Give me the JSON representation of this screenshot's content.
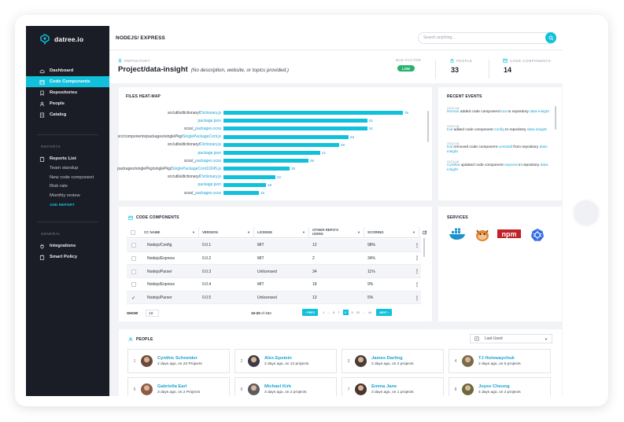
{
  "brand": {
    "name": "datree.io"
  },
  "sidebar": {
    "main_items": [
      {
        "label": "Dashboard",
        "icon": "cloud-icon"
      },
      {
        "label": "Code Components",
        "icon": "box-icon"
      },
      {
        "label": "Repositories",
        "icon": "bookmark-icon"
      },
      {
        "label": "People",
        "icon": "person-icon"
      },
      {
        "label": "Catalog",
        "icon": "book-icon"
      }
    ],
    "reports_heading": "REPORTS",
    "reports_list": "Reports List",
    "reports": [
      "Team standup",
      "New code component",
      "Risk rate",
      "Monthly review"
    ],
    "add_report": "ADD REPORT",
    "general_heading": "GENERAL",
    "general_items": [
      {
        "label": "Integrations",
        "icon": "plug-icon"
      },
      {
        "label": "Smart Policy",
        "icon": "clipboard-icon"
      }
    ]
  },
  "header": {
    "breadcrumb": "NODEJS/ EXPRESS",
    "search_placeholder": "Search anything..."
  },
  "repo": {
    "label": "REPOSITORY",
    "title": "Project/data-insight",
    "description": "(No description, website, or topics provided.)",
    "bus_factor_label": "BUS FACTOR",
    "bus_factor_value": "LOW",
    "people_label": "PEOPLE",
    "people_value": "33",
    "cc_label": "CODE COMPONENTS",
    "cc_value": "14"
  },
  "heatmap": {
    "title": "FILES HEAT-MAP",
    "xlim": [
      0,
      80
    ],
    "rows": [
      {
        "path": "src/utils/dictionary/",
        "file": "Dictionary.js",
        "value": 76
      },
      {
        "path": "",
        "file": "package.json",
        "value": 61
      },
      {
        "path": "scss/_",
        "file": "packages.scss",
        "value": 61
      },
      {
        "path": "src/components/packages/singlePkg/",
        "file": "SinglePackageCont.js",
        "value": 53
      },
      {
        "path": "src/utils/dictionary/",
        "file": "Dictionary.js",
        "value": 49
      },
      {
        "path": "",
        "file": "package.json",
        "value": 41
      },
      {
        "path": "scss/_",
        "file": "packages.scss",
        "value": 36
      },
      {
        "path": "packages/singlePkg/singlePkg/",
        "file": "SinglePackageCont10245.js",
        "value": 28
      },
      {
        "path": "src/utils/dictionary/",
        "file": "Dictionary.js",
        "value": 22
      },
      {
        "path": "",
        "file": "package.json",
        "value": 18
      },
      {
        "path": "scss/_",
        "file": "packages.scss",
        "value": 15
      }
    ]
  },
  "events": {
    "title": "RECENT EVENTS",
    "items": [
      {
        "date": "23/11/18",
        "user": "Roman",
        "action": " added code component ",
        "target": "koa",
        "mid": " to repository ",
        "repo": "data-insight"
      },
      {
        "date": "23/11/18",
        "user": "Kat",
        "action": " added code component ",
        "target": "config",
        "mid": " to repository ",
        "repo": "data-insight"
      },
      {
        "date": "23/11/18",
        "user": "Kat",
        "action": " removed code component ",
        "target": "uninstall",
        "mid": " from repository ",
        "repo": "data-insight"
      },
      {
        "date": "23/11/18",
        "user": "Cynthia",
        "action": " updated code component ",
        "target": "express",
        "mid": " in repository ",
        "repo": "data-insight"
      }
    ]
  },
  "code_components": {
    "title": "CODE COMPONENTS",
    "columns": [
      "CC NAME",
      "VERSION",
      "LICENSE",
      "OTHER REPO'S USING",
      "SCORING"
    ],
    "rows": [
      {
        "name": "Nodejs/Config",
        "version": "0.0.1",
        "license": "MIT",
        "using": "12",
        "scoring": "98%",
        "checked": false
      },
      {
        "name": "Nodejs/Express",
        "version": "0.0.2",
        "license": "MIT",
        "using": "2",
        "scoring": "34%",
        "checked": false
      },
      {
        "name": "Nodejs/Parser",
        "version": "0.0.3",
        "license": "Unlicensed",
        "using": "34",
        "scoring": "11%",
        "checked": false
      },
      {
        "name": "Nodejs/Express",
        "version": "0.0.4",
        "license": "MIT",
        "using": "18",
        "scoring": "9%",
        "checked": false
      },
      {
        "name": "Nodejs/Parser",
        "version": "0.0.5",
        "license": "Unlicensed",
        "using": "13",
        "scoring": "5%",
        "checked": true
      }
    ],
    "show_label": "SHOW",
    "show_value": "10",
    "range_text": "10-20",
    "range_of": "of 484",
    "prev": "PREV",
    "next": "NEXT",
    "pages": [
      "1",
      "...",
      "6",
      "7",
      "8",
      "9",
      "10",
      "...",
      "44"
    ],
    "current_page": "8"
  },
  "services": {
    "title": "SERVICES",
    "items": [
      "docker-icon",
      "grunt-icon",
      "npm-icon",
      "kubernetes-icon"
    ],
    "npm_text": "npm"
  },
  "people": {
    "title": "PEOPLE",
    "sort_value": "Last Used",
    "items": [
      {
        "num": "1",
        "name": "Cynthis Schneider",
        "info": "2 days ago, on 22 Projects",
        "color": "#6b4a3a"
      },
      {
        "num": "2",
        "name": "Alex Epstein",
        "info": "2 days ago, on 12 projects",
        "color": "#3c3a44"
      },
      {
        "num": "3",
        "name": "James Darling",
        "info": "2 days ago, on 2 projects",
        "color": "#4a3b34"
      },
      {
        "num": "4",
        "name": "TJ Holowaychuk",
        "info": "2 days ago, on 5 projects",
        "color": "#7a6a4a"
      },
      {
        "num": "5",
        "name": "Gabriella Earl",
        "info": "3 days ago, on 2 Projects",
        "color": "#8a5c44"
      },
      {
        "num": "6",
        "name": "Michael Kirk",
        "info": "3 days ago, on 2 projects",
        "color": "#5a5a60"
      },
      {
        "num": "7",
        "name": "Emma Jane",
        "info": "3 days ago, on 1 projects",
        "color": "#4a3530"
      },
      {
        "num": "8",
        "name": "Joyee Cheung",
        "info": "4 days ago, on 2 projects",
        "color": "#6a6a3a"
      }
    ]
  }
}
